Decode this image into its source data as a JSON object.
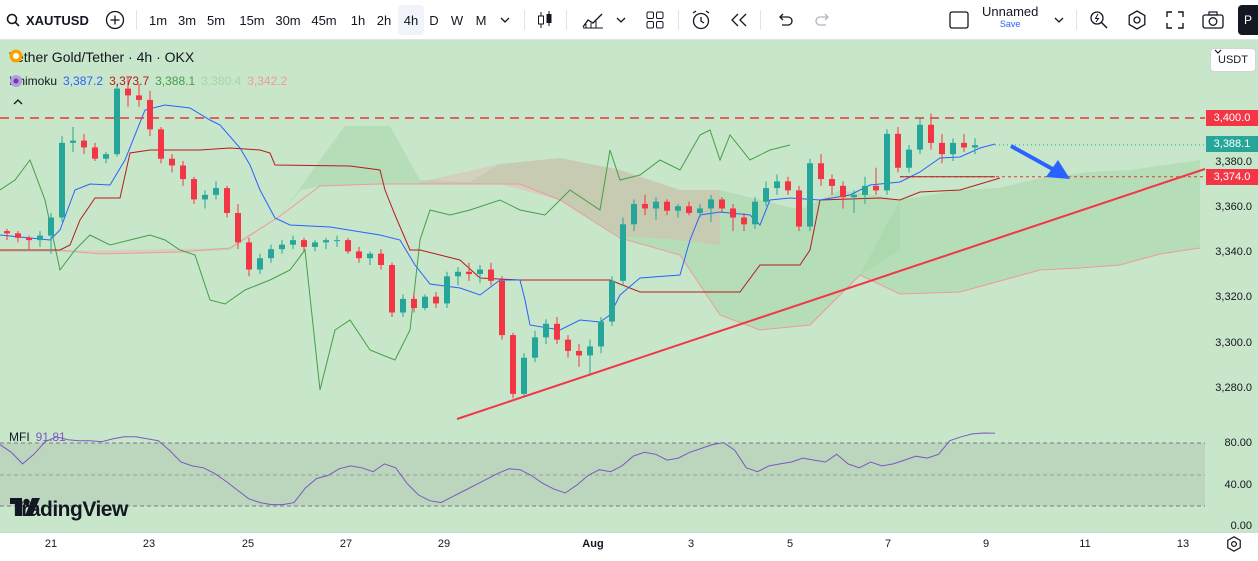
{
  "toolbar": {
    "symbol": "XAUTUSD",
    "intervals": [
      "1m",
      "3m",
      "5m",
      "15m",
      "30m",
      "45m",
      "1h",
      "2h",
      "4h",
      "D",
      "W",
      "M"
    ],
    "active_interval": "4h",
    "layout_name": "Unnamed",
    "save_label": "Save"
  },
  "legend": {
    "title": "Tether Gold/Tether · 4h · OKX",
    "indicator": "Ichimoku",
    "values": [
      "3,387.2",
      "3,373.7",
      "3,388.1",
      "3,380.4",
      "3,342.2"
    ],
    "mfi_label": "MFI",
    "mfi_value": "91.81"
  },
  "currency": "USDT",
  "price_labels": {
    "resistance": "3,400.0",
    "last": "3,388.1",
    "kijun": "3,374.0"
  },
  "price_axis": [
    "3,380.0",
    "3,360.0",
    "3,340.0",
    "3,320.0",
    "3,300.0",
    "3,280.0"
  ],
  "mfi_axis": [
    "80.00",
    "40.00",
    "0.00"
  ],
  "time_axis": [
    "21",
    "23",
    "25",
    "27",
    "29",
    "Aug",
    "3",
    "5",
    "7",
    "9",
    "11",
    "13"
  ],
  "brand": "TradingView",
  "colors": {
    "background": "#c8e6c9",
    "up": "#26a69a",
    "down": "#f23645",
    "tenkan": "#2962ff",
    "kijun": "#b71c1c",
    "chikou": "#43a047",
    "mfi": "#7e57c2",
    "trendline": "#f23645",
    "arrow": "#2962ff"
  },
  "chart_data": {
    "type": "candlestick",
    "title": "Tether Gold/Tether · 4h · OKX",
    "ylim": [
      3268,
      3410
    ],
    "ohlc": [
      [
        3350,
        3351,
        3346,
        3349
      ],
      [
        3349,
        3350,
        3345,
        3347
      ],
      [
        3347,
        3348,
        3342,
        3346
      ],
      [
        3346,
        3350,
        3343,
        3348
      ],
      [
        3348,
        3358,
        3340,
        3356
      ],
      [
        3356,
        3392,
        3354,
        3389
      ],
      [
        3389,
        3396,
        3385,
        3390
      ],
      [
        3390,
        3393,
        3384,
        3387
      ],
      [
        3387,
        3389,
        3381,
        3382
      ],
      [
        3382,
        3385,
        3380,
        3384
      ],
      [
        3384,
        3415,
        3383,
        3413
      ],
      [
        3413,
        3418,
        3405,
        3410
      ],
      [
        3410,
        3415,
        3405,
        3408
      ],
      [
        3408,
        3412,
        3392,
        3395
      ],
      [
        3395,
        3396,
        3380,
        3382
      ],
      [
        3382,
        3384,
        3376,
        3379
      ],
      [
        3379,
        3381,
        3370,
        3373
      ],
      [
        3373,
        3374,
        3362,
        3364
      ],
      [
        3364,
        3368,
        3360,
        3366
      ],
      [
        3366,
        3372,
        3364,
        3369
      ],
      [
        3369,
        3370,
        3356,
        3358
      ],
      [
        3358,
        3362,
        3342,
        3345
      ],
      [
        3345,
        3347,
        3330,
        3333
      ],
      [
        3333,
        3340,
        3331,
        3338
      ],
      [
        3338,
        3344,
        3336,
        3342
      ],
      [
        3342,
        3346,
        3340,
        3344
      ],
      [
        3344,
        3348,
        3342,
        3346
      ],
      [
        3346,
        3347,
        3341,
        3343
      ],
      [
        3343,
        3346,
        3341,
        3345
      ],
      [
        3345,
        3347,
        3342,
        3346
      ],
      [
        3346,
        3348,
        3343,
        3346
      ],
      [
        3346,
        3347,
        3340,
        3341
      ],
      [
        3341,
        3343,
        3336,
        3338
      ],
      [
        3338,
        3341,
        3335,
        3340
      ],
      [
        3340,
        3342,
        3333,
        3335
      ],
      [
        3335,
        3336,
        3312,
        3314
      ],
      [
        3314,
        3322,
        3312,
        3320
      ],
      [
        3320,
        3323,
        3314,
        3316
      ],
      [
        3316,
        3322,
        3315,
        3321
      ],
      [
        3321,
        3323,
        3316,
        3318
      ],
      [
        3318,
        3332,
        3316,
        3330
      ],
      [
        3330,
        3334,
        3326,
        3332
      ],
      [
        3332,
        3336,
        3328,
        3331
      ],
      [
        3331,
        3335,
        3327,
        3333
      ],
      [
        3333,
        3336,
        3326,
        3328
      ],
      [
        3328,
        3330,
        3302,
        3304
      ],
      [
        3304,
        3305,
        3276,
        3278
      ],
      [
        3278,
        3296,
        3277,
        3294
      ],
      [
        3294,
        3306,
        3292,
        3303
      ],
      [
        3303,
        3311,
        3300,
        3309
      ],
      [
        3309,
        3312,
        3300,
        3302
      ],
      [
        3302,
        3304,
        3294,
        3297
      ],
      [
        3297,
        3300,
        3290,
        3295
      ],
      [
        3295,
        3302,
        3286,
        3299
      ],
      [
        3299,
        3312,
        3296,
        3310
      ],
      [
        3310,
        3330,
        3308,
        3328
      ],
      [
        3328,
        3356,
        3326,
        3353
      ],
      [
        3353,
        3364,
        3350,
        3362
      ],
      [
        3362,
        3366,
        3357,
        3360
      ],
      [
        3360,
        3365,
        3355,
        3363
      ],
      [
        3363,
        3364,
        3357,
        3359
      ],
      [
        3359,
        3362,
        3356,
        3361
      ],
      [
        3361,
        3363,
        3357,
        3358
      ],
      [
        3358,
        3362,
        3356,
        3360
      ],
      [
        3360,
        3366,
        3354,
        3364
      ],
      [
        3364,
        3365,
        3358,
        3360
      ],
      [
        3360,
        3362,
        3350,
        3356
      ],
      [
        3356,
        3358,
        3350,
        3353
      ],
      [
        3353,
        3365,
        3351,
        3363
      ],
      [
        3363,
        3372,
        3361,
        3369
      ],
      [
        3369,
        3375,
        3366,
        3372
      ],
      [
        3372,
        3374,
        3366,
        3368
      ],
      [
        3368,
        3370,
        3350,
        3352
      ],
      [
        3352,
        3382,
        3350,
        3380
      ],
      [
        3380,
        3384,
        3370,
        3373
      ],
      [
        3373,
        3375,
        3366,
        3370
      ],
      [
        3370,
        3372,
        3360,
        3365
      ],
      [
        3365,
        3368,
        3358,
        3366
      ],
      [
        3366,
        3374,
        3362,
        3370
      ],
      [
        3370,
        3378,
        3366,
        3368
      ],
      [
        3368,
        3395,
        3366,
        3393
      ],
      [
        3393,
        3396,
        3376,
        3378
      ],
      [
        3378,
        3388,
        3376,
        3386
      ],
      [
        3386,
        3400,
        3384,
        3397
      ],
      [
        3397,
        3402,
        3386,
        3389
      ],
      [
        3389,
        3393,
        3380,
        3384
      ],
      [
        3384,
        3391,
        3381,
        3389
      ],
      [
        3389,
        3393,
        3385,
        3387
      ],
      [
        3387,
        3391,
        3384,
        3388
      ]
    ],
    "mfi": [
      80,
      72,
      60,
      70,
      83,
      88,
      85,
      84,
      84,
      83,
      86,
      88,
      88,
      86,
      84,
      74,
      62,
      58,
      56,
      50,
      42,
      33,
      24,
      20,
      18,
      18,
      20,
      35,
      45,
      48,
      55,
      58,
      56,
      52,
      60,
      56,
      40,
      28,
      22,
      20,
      26,
      32,
      38,
      44,
      50,
      55,
      54,
      48,
      40,
      34,
      30,
      38,
      48,
      54,
      52,
      58,
      68,
      72,
      70,
      64,
      66,
      72,
      76,
      80,
      82,
      74,
      56,
      52,
      58,
      60,
      62,
      66,
      64,
      62,
      70,
      60,
      56,
      62,
      58,
      60,
      64,
      68,
      66,
      70,
      84,
      88,
      91,
      92,
      91.81
    ],
    "levels": {
      "resistance": 3400.0,
      "kijun": 3374.0,
      "last": 3388.1
    }
  }
}
